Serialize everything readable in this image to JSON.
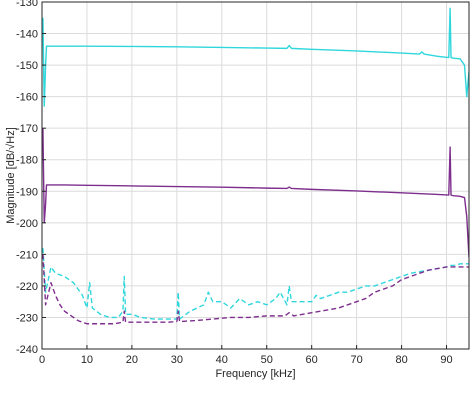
{
  "chart_data": {
    "type": "line",
    "title": "",
    "xlabel": "Frequency [kHz]",
    "ylabel": "Magnitude [dB/√Hz]",
    "xlim": [
      0,
      95
    ],
    "ylim": [
      -240,
      -130
    ],
    "xticks": [
      0,
      10,
      20,
      30,
      40,
      50,
      60,
      70,
      80,
      90
    ],
    "yticks": [
      -130,
      -140,
      -150,
      -160,
      -170,
      -180,
      -190,
      -200,
      -210,
      -220,
      -230,
      -240
    ],
    "grid": true,
    "legend": "none",
    "series": [
      {
        "color": "#2fd7dc",
        "style": "solid",
        "x": [
          0.2,
          0.5,
          0.8,
          1.0,
          1.5,
          5,
          10,
          20,
          30,
          40,
          50,
          54.5,
          55,
          55.5,
          60,
          70,
          80,
          84,
          84.5,
          85,
          88,
          90.5,
          90.8,
          91,
          91.2,
          91.5,
          93,
          94,
          94.5,
          95
        ],
        "y": [
          -135,
          -163,
          -150,
          -144,
          -144,
          -144,
          -144,
          -144.1,
          -144.2,
          -144.4,
          -144.6,
          -144.7,
          -143.8,
          -144.7,
          -145,
          -145.5,
          -146.2,
          -146.5,
          -145.8,
          -146.5,
          -147.2,
          -147.6,
          -132,
          -147.6,
          -147.7,
          -147.8,
          -148,
          -150,
          -160,
          -152
        ]
      },
      {
        "color": "#7e2f8e",
        "style": "solid",
        "x": [
          0.2,
          0.5,
          0.8,
          1.0,
          1.5,
          5,
          10,
          20,
          30,
          40,
          50,
          54.5,
          55,
          55.5,
          60,
          70,
          80,
          88,
          90.5,
          90.8,
          91,
          91.2,
          91.5,
          93,
          94,
          94.5,
          95
        ],
        "y": [
          -170,
          -200,
          -194,
          -188,
          -188,
          -188,
          -188.1,
          -188.3,
          -188.5,
          -188.7,
          -189,
          -189.1,
          -188.7,
          -189.1,
          -189.4,
          -189.9,
          -190.5,
          -191,
          -191.2,
          -176,
          -191.2,
          -191.3,
          -191.4,
          -191.6,
          -192,
          -198,
          -211
        ]
      },
      {
        "color": "#2fd7dc",
        "style": "dashed",
        "x": [
          0.2,
          0.8,
          2,
          3,
          5,
          7,
          9,
          10,
          10.6,
          11.2,
          13,
          15,
          17,
          18,
          18.3,
          18.6,
          20,
          22,
          25,
          28,
          30,
          30.3,
          30.6,
          33,
          36,
          37,
          38,
          40,
          42,
          44,
          46,
          48,
          50,
          52,
          53,
          54.5,
          55,
          55.5,
          57,
          60,
          61,
          62,
          64,
          66,
          68,
          70,
          72,
          74,
          76,
          78,
          80,
          82,
          84,
          86,
          88,
          90,
          91,
          92,
          93,
          94,
          95
        ],
        "y": [
          -208,
          -222,
          -214,
          -216,
          -217,
          -219,
          -223,
          -227,
          -219,
          -227,
          -229,
          -230,
          -230,
          -228,
          -217,
          -229,
          -229,
          -230,
          -230.5,
          -230.5,
          -230.5,
          -222,
          -230.5,
          -228,
          -226,
          -222,
          -225,
          -225,
          -227,
          -224,
          -226,
          -225,
          -226,
          -224,
          -222,
          -226,
          -220,
          -225,
          -225,
          -225,
          -223,
          -224,
          -223,
          -222,
          -222,
          -221,
          -220,
          -220,
          -219,
          -218,
          -217,
          -216,
          -215.5,
          -215,
          -214.5,
          -214,
          -213.5,
          -213.5,
          -213,
          -213,
          -213
        ]
      },
      {
        "color": "#7e2f8e",
        "style": "dashed",
        "x": [
          0.2,
          0.8,
          2,
          3,
          4,
          5,
          7,
          8,
          9,
          10,
          12,
          14,
          16,
          18,
          18.3,
          18.6,
          20,
          22,
          25,
          28,
          30,
          30.3,
          30.6,
          34,
          38,
          42,
          46,
          50,
          54,
          55,
          56,
          58,
          60,
          62,
          64,
          66,
          68,
          70,
          72,
          74,
          76,
          78,
          80,
          82,
          84,
          86,
          88,
          90,
          91,
          92,
          93,
          94,
          95
        ],
        "y": [
          -210,
          -226,
          -219,
          -223,
          -226,
          -228,
          -230,
          -231,
          -231.5,
          -232,
          -232,
          -232,
          -232,
          -231.5,
          -228,
          -231.5,
          -231.5,
          -231.5,
          -231.5,
          -231.5,
          -231.3,
          -228,
          -231.3,
          -231,
          -230.5,
          -230,
          -230,
          -229.5,
          -229.5,
          -228.5,
          -229.5,
          -229,
          -228.5,
          -228,
          -227.5,
          -227,
          -226,
          -225,
          -224,
          -222,
          -221,
          -220,
          -218,
          -217,
          -216,
          -215,
          -214.5,
          -214,
          -214,
          -214,
          -214,
          -214,
          -214
        ]
      }
    ]
  }
}
